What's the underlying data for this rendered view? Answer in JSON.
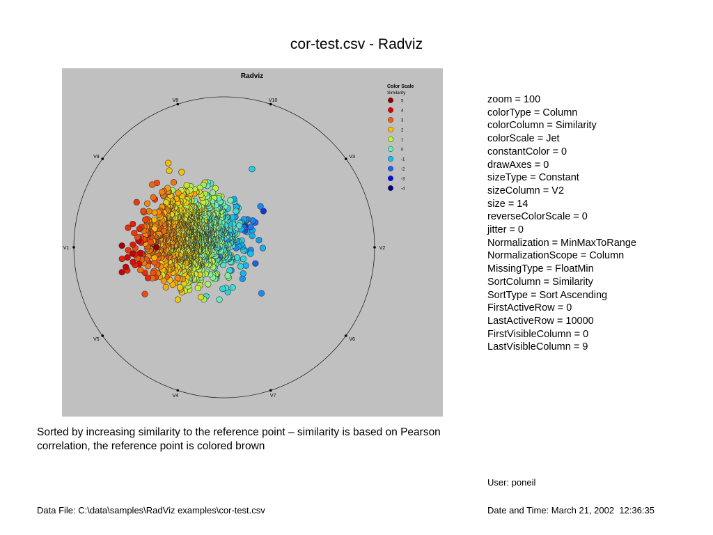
{
  "page": {
    "title": "cor-test.csv - Radviz",
    "caption": "Sorted by increasing similarity to the reference point – similarity is based on Pearson correlation, the reference point is colored brown",
    "user": "User: poneil",
    "data_file": "Data File: C:\\data\\samples\\RadViz examples\\cor-test.csv",
    "date_time": "Date and Time: March 21, 2002  12:36:35"
  },
  "params": [
    "zoom = 100",
    "colorType = Column",
    "colorColumn = Similarity",
    "colorScale = Jet",
    "constantColor = 0",
    "drawAxes = 0",
    "sizeType = Constant",
    "sizeColumn = V2",
    "size = 14",
    "reverseColorScale = 0",
    "jitter = 0",
    "Normalization = MinMaxToRange",
    "NormalizationScope = Column",
    "MissingType = FloatMin",
    "SortColumn = Similarity",
    "SortType = Sort Ascending",
    "FirstActiveRow = 0",
    "LastActiveRow = 10000",
    "FirstVisibleColumn = 0",
    "LastVisibleColumn = 9"
  ],
  "chart_data": {
    "type": "scatter",
    "title": "Radviz",
    "anchors": [
      "V2",
      "V3",
      "V10",
      "V8",
      "V9",
      "V1",
      "V5",
      "V4",
      "V7",
      "V6"
    ],
    "legend": {
      "title": "Color Scale",
      "subtitle": "Similarity",
      "entries": [
        {
          "label": "5",
          "color": "#8b0000"
        },
        {
          "label": "4",
          "color": "#e00000"
        },
        {
          "label": "3",
          "color": "#f06010"
        },
        {
          "label": "2",
          "color": "#f8c000"
        },
        {
          "label": "1",
          "color": "#c0f040"
        },
        {
          "label": "0",
          "color": "#60f0c0"
        },
        {
          "label": "-1",
          "color": "#10c0f0"
        },
        {
          "label": "-2",
          "color": "#2060f0"
        },
        {
          "label": "-3",
          "color": "#0010e0"
        },
        {
          "label": "-4",
          "color": "#000080"
        }
      ]
    },
    "legend_position": "top-right",
    "point_cloud": {
      "count": 1600,
      "center": [
        -0.22,
        0.06
      ],
      "spread": [
        0.38,
        0.34
      ],
      "similarity_gradient": "high similarity on the V9 side (left), low similarity on the V2 side (right)",
      "reference_point": {
        "x": -0.45,
        "y": 0.0,
        "similarity": 5
      }
    }
  }
}
